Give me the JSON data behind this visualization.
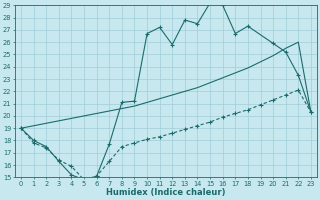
{
  "xlabel": "Humidex (Indice chaleur)",
  "background_color": "#c8e8f0",
  "grid_color": "#a0cdd8",
  "line_color": "#1b6b6b",
  "ylim": [
    15,
    29
  ],
  "xlim": [
    -0.5,
    23.5
  ],
  "yticks": [
    15,
    16,
    17,
    18,
    19,
    20,
    21,
    22,
    23,
    24,
    25,
    26,
    27,
    28,
    29
  ],
  "xticks": [
    0,
    1,
    2,
    3,
    4,
    5,
    6,
    7,
    8,
    9,
    10,
    11,
    12,
    13,
    14,
    15,
    16,
    17,
    18,
    19,
    20,
    21,
    22,
    23
  ],
  "top_x": [
    0,
    1,
    2,
    3,
    4,
    5,
    6,
    7,
    8,
    9,
    10,
    11,
    12,
    13,
    14,
    15,
    16,
    17,
    18,
    20,
    21,
    22,
    23
  ],
  "top_y": [
    19.0,
    18.0,
    17.5,
    16.3,
    15.2,
    14.8,
    15.1,
    17.7,
    21.1,
    21.2,
    26.7,
    27.2,
    25.8,
    27.8,
    27.5,
    29.2,
    29.0,
    26.7,
    27.3,
    25.9,
    25.2,
    23.3,
    20.3
  ],
  "mid_x": [
    0,
    1,
    2,
    3,
    4,
    5,
    6,
    7,
    8,
    9,
    10,
    11,
    12,
    13,
    14,
    15,
    16,
    17,
    18,
    19,
    20,
    21,
    22,
    23
  ],
  "mid_y": [
    19.0,
    19.2,
    19.4,
    19.6,
    19.8,
    20.0,
    20.2,
    20.4,
    20.6,
    20.8,
    21.1,
    21.4,
    21.7,
    22.0,
    22.3,
    22.7,
    23.1,
    23.5,
    23.9,
    24.4,
    24.9,
    25.5,
    26.0,
    20.3
  ],
  "bot_x": [
    0,
    1,
    2,
    3,
    4,
    5,
    6,
    7,
    8,
    9,
    10,
    11,
    12,
    13,
    14,
    15,
    16,
    17,
    18,
    19,
    20,
    21,
    22,
    23
  ],
  "bot_y": [
    19.0,
    17.8,
    17.4,
    16.4,
    15.9,
    14.8,
    15.1,
    16.3,
    17.5,
    17.8,
    18.1,
    18.3,
    18.6,
    18.9,
    19.2,
    19.5,
    19.9,
    20.2,
    20.5,
    20.9,
    21.3,
    21.7,
    22.1,
    20.3
  ]
}
